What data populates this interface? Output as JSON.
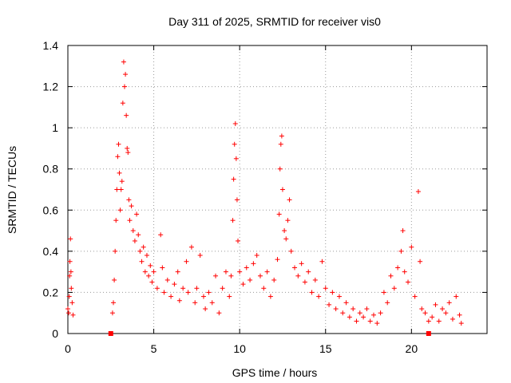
{
  "chart_data": {
    "type": "scatter",
    "title": "Day 311 of 2025, SRMTID for receiver vis0",
    "xlabel": "GPS time / hours",
    "ylabel": "SRMTID / TECUs",
    "xlim": [
      0,
      24.4
    ],
    "ylim": [
      0,
      1.4
    ],
    "x_ticks": [
      0,
      5,
      10,
      15,
      20
    ],
    "y_ticks": [
      0,
      0.2,
      0.4,
      0.6,
      0.8,
      1,
      1.2,
      1.4
    ],
    "x_tick_labels": [
      "0",
      "5",
      "10",
      "15",
      "20"
    ],
    "y_tick_labels": [
      "0",
      "0.2",
      "0.4",
      "0.6",
      "0.8",
      "1",
      "1.2",
      "1.4"
    ],
    "grid": true,
    "legend": "none",
    "series": [
      {
        "name": "SRMTID",
        "marker": "plus",
        "color": "#ff0000",
        "points": [
          [
            0.0,
            0.12
          ],
          [
            0.05,
            0.1
          ],
          [
            0.08,
            0.18
          ],
          [
            0.1,
            0.28
          ],
          [
            0.12,
            0.35
          ],
          [
            0.15,
            0.46
          ],
          [
            0.18,
            0.3
          ],
          [
            0.2,
            0.22
          ],
          [
            0.25,
            0.15
          ],
          [
            0.3,
            0.09
          ],
          [
            2.6,
            0.1
          ],
          [
            2.65,
            0.15
          ],
          [
            2.7,
            0.26
          ],
          [
            2.75,
            0.4
          ],
          [
            2.8,
            0.55
          ],
          [
            2.85,
            0.7
          ],
          [
            2.9,
            0.86
          ],
          [
            2.95,
            0.92
          ],
          [
            3.0,
            0.78
          ],
          [
            3.05,
            0.6
          ],
          [
            3.1,
            0.7
          ],
          [
            3.15,
            0.74
          ],
          [
            3.2,
            1.12
          ],
          [
            3.25,
            1.32
          ],
          [
            3.3,
            1.2
          ],
          [
            3.35,
            1.26
          ],
          [
            3.4,
            1.06
          ],
          [
            3.45,
            0.9
          ],
          [
            3.5,
            0.88
          ],
          [
            3.55,
            0.65
          ],
          [
            3.6,
            0.55
          ],
          [
            3.7,
            0.62
          ],
          [
            3.8,
            0.5
          ],
          [
            3.9,
            0.45
          ],
          [
            4.0,
            0.58
          ],
          [
            4.1,
            0.48
          ],
          [
            4.2,
            0.4
          ],
          [
            4.3,
            0.35
          ],
          [
            4.4,
            0.42
          ],
          [
            4.5,
            0.3
          ],
          [
            4.6,
            0.38
          ],
          [
            4.7,
            0.28
          ],
          [
            4.8,
            0.33
          ],
          [
            4.9,
            0.25
          ],
          [
            5.0,
            0.3
          ],
          [
            5.2,
            0.22
          ],
          [
            5.4,
            0.48
          ],
          [
            5.5,
            0.32
          ],
          [
            5.6,
            0.2
          ],
          [
            5.8,
            0.26
          ],
          [
            6.0,
            0.18
          ],
          [
            6.2,
            0.24
          ],
          [
            6.4,
            0.3
          ],
          [
            6.5,
            0.16
          ],
          [
            6.7,
            0.22
          ],
          [
            6.9,
            0.35
          ],
          [
            7.0,
            0.2
          ],
          [
            7.2,
            0.42
          ],
          [
            7.4,
            0.15
          ],
          [
            7.5,
            0.22
          ],
          [
            7.7,
            0.38
          ],
          [
            7.9,
            0.18
          ],
          [
            8.0,
            0.12
          ],
          [
            8.2,
            0.2
          ],
          [
            8.4,
            0.15
          ],
          [
            8.6,
            0.28
          ],
          [
            8.8,
            0.1
          ],
          [
            9.0,
            0.22
          ],
          [
            9.2,
            0.3
          ],
          [
            9.4,
            0.18
          ],
          [
            9.5,
            0.28
          ],
          [
            9.6,
            0.55
          ],
          [
            9.65,
            0.75
          ],
          [
            9.7,
            0.92
          ],
          [
            9.75,
            1.02
          ],
          [
            9.8,
            0.85
          ],
          [
            9.85,
            0.65
          ],
          [
            9.9,
            0.45
          ],
          [
            10.0,
            0.3
          ],
          [
            10.2,
            0.24
          ],
          [
            10.4,
            0.32
          ],
          [
            10.6,
            0.26
          ],
          [
            10.8,
            0.34
          ],
          [
            11.0,
            0.38
          ],
          [
            11.2,
            0.28
          ],
          [
            11.4,
            0.22
          ],
          [
            11.6,
            0.3
          ],
          [
            11.8,
            0.18
          ],
          [
            12.0,
            0.26
          ],
          [
            12.2,
            0.36
          ],
          [
            12.3,
            0.58
          ],
          [
            12.35,
            0.8
          ],
          [
            12.4,
            0.92
          ],
          [
            12.45,
            0.96
          ],
          [
            12.5,
            0.7
          ],
          [
            12.6,
            0.5
          ],
          [
            12.7,
            0.46
          ],
          [
            12.8,
            0.55
          ],
          [
            12.9,
            0.65
          ],
          [
            13.0,
            0.4
          ],
          [
            13.2,
            0.32
          ],
          [
            13.4,
            0.28
          ],
          [
            13.6,
            0.34
          ],
          [
            13.8,
            0.25
          ],
          [
            14.0,
            0.3
          ],
          [
            14.2,
            0.2
          ],
          [
            14.4,
            0.26
          ],
          [
            14.6,
            0.18
          ],
          [
            14.8,
            0.35
          ],
          [
            15.0,
            0.22
          ],
          [
            15.2,
            0.14
          ],
          [
            15.4,
            0.2
          ],
          [
            15.6,
            0.12
          ],
          [
            15.8,
            0.18
          ],
          [
            16.0,
            0.1
          ],
          [
            16.2,
            0.15
          ],
          [
            16.4,
            0.08
          ],
          [
            16.6,
            0.12
          ],
          [
            16.8,
            0.06
          ],
          [
            17.0,
            0.1
          ],
          [
            17.2,
            0.08
          ],
          [
            17.4,
            0.12
          ],
          [
            17.6,
            0.06
          ],
          [
            17.8,
            0.09
          ],
          [
            18.0,
            0.05
          ],
          [
            18.2,
            0.1
          ],
          [
            18.4,
            0.2
          ],
          [
            18.6,
            0.15
          ],
          [
            18.8,
            0.28
          ],
          [
            19.0,
            0.22
          ],
          [
            19.2,
            0.32
          ],
          [
            19.4,
            0.4
          ],
          [
            19.5,
            0.5
          ],
          [
            19.6,
            0.3
          ],
          [
            19.8,
            0.25
          ],
          [
            20.0,
            0.42
          ],
          [
            20.2,
            0.18
          ],
          [
            20.4,
            0.69
          ],
          [
            20.5,
            0.35
          ],
          [
            20.6,
            0.12
          ],
          [
            20.8,
            0.1
          ],
          [
            21.0,
            0.06
          ],
          [
            21.2,
            0.08
          ],
          [
            21.4,
            0.14
          ],
          [
            21.6,
            0.06
          ],
          [
            21.8,
            0.12
          ],
          [
            22.0,
            0.1
          ],
          [
            22.2,
            0.15
          ],
          [
            22.4,
            0.07
          ],
          [
            22.6,
            0.18
          ],
          [
            22.8,
            0.09
          ],
          [
            22.9,
            0.05
          ]
        ]
      }
    ],
    "marker_squares": [
      [
        2.5,
        0.0
      ],
      [
        21.0,
        0.0
      ]
    ]
  }
}
